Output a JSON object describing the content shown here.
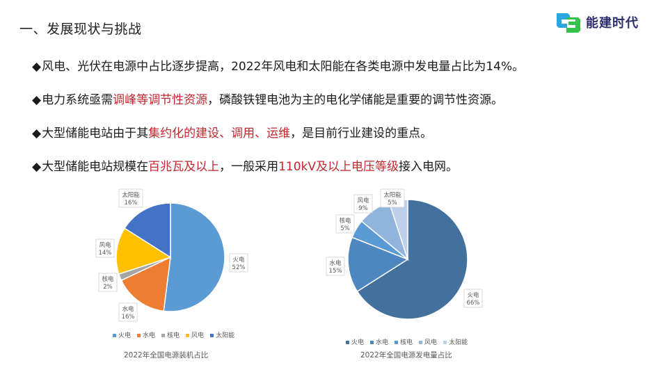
{
  "header": {
    "title": "一、发展现状与挑战",
    "logo_text": "能建时代",
    "logo_icon": "linked-shapes-logo-icon"
  },
  "bullets": [
    {
      "marker": "◆",
      "parts": [
        {
          "text": "风电、光伏在电源中占比逐步提高，2022年风电和太阳能在各类电源中发电量占比为14%。",
          "highlight": false
        }
      ]
    },
    {
      "marker": "◆",
      "parts": [
        {
          "text": "电力系统亟需",
          "highlight": false
        },
        {
          "text": "调峰等调节性资源",
          "highlight": true
        },
        {
          "text": "，磷酸铁锂电池为主的电化学储能是重要的调节性资源。",
          "highlight": false
        }
      ]
    },
    {
      "marker": "◆",
      "parts": [
        {
          "text": "大型储能电站由于其",
          "highlight": false
        },
        {
          "text": "集约化的建设、调用、运维",
          "highlight": true
        },
        {
          "text": "，是目前行业建设的重点。",
          "highlight": false
        }
      ]
    },
    {
      "marker": "◆",
      "parts": [
        {
          "text": "大型储能电站规模在",
          "highlight": false
        },
        {
          "text": "百兆瓦及以上",
          "highlight": true
        },
        {
          "text": "，一般采用",
          "highlight": false
        },
        {
          "text": "110kV及以上电压等级",
          "highlight": true
        },
        {
          "text": "接入电网。",
          "highlight": false
        }
      ]
    }
  ],
  "colors": {
    "highlight": "#c4262e",
    "text": "#1a1a1a"
  },
  "chart_data": [
    {
      "type": "pie",
      "title": "2022年全国电源装机占比",
      "categories": [
        "火电",
        "水电",
        "核电",
        "风电",
        "太阳能"
      ],
      "values": [
        52,
        16,
        2,
        14,
        16
      ],
      "labels": [
        "52%",
        "16%",
        "2%",
        "14%",
        "16%"
      ],
      "colors": [
        "#5b9bd5",
        "#ed7d31",
        "#a5a5a5",
        "#ffc000",
        "#4472c4"
      ],
      "legend_position": "bottom",
      "start_angle_deg": 0,
      "direction": "clockwise"
    },
    {
      "type": "pie",
      "title": "2022年全国电源发电量占比",
      "categories": [
        "火电",
        "水电",
        "核电",
        "风电",
        "太阳能"
      ],
      "values": [
        66,
        15,
        5,
        9,
        5
      ],
      "labels": [
        "66%",
        "15%",
        "5%",
        "9%",
        "5%"
      ],
      "colors": [
        "#41719c",
        "#4e86bf",
        "#5b9bd5",
        "#91b4dd",
        "#bcd0ea"
      ],
      "legend_position": "bottom",
      "start_angle_deg": 0,
      "direction": "clockwise"
    }
  ]
}
